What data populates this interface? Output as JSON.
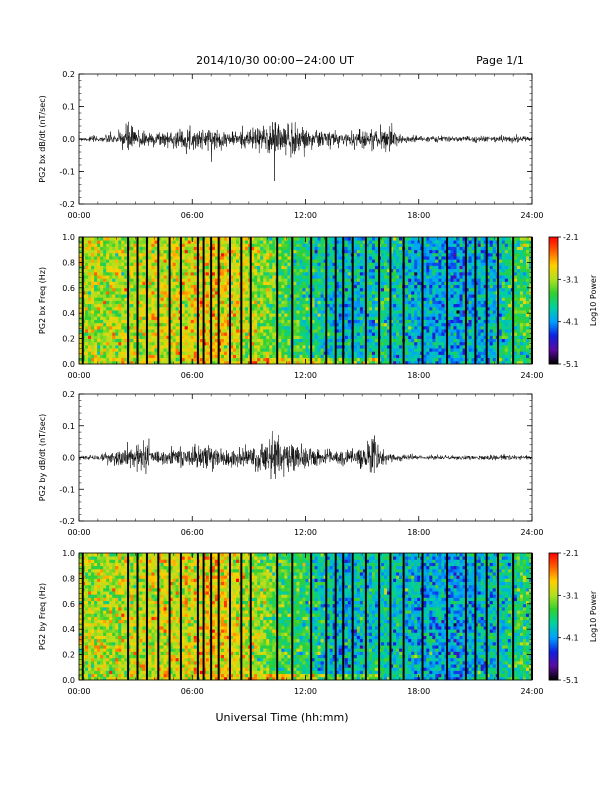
{
  "header": {
    "title": "2014/10/30  00:00−24:00 UT",
    "page": "Page 1/1"
  },
  "footer": {
    "xlabel": "Universal Time (hh:mm)"
  },
  "colors": {
    "axis": "#000000",
    "trace": "#000000",
    "colormap": [
      "#000000",
      "#5a0aa0",
      "#1020e0",
      "#00a0ff",
      "#00d0a0",
      "#30d030",
      "#b0e020",
      "#ffd000",
      "#ff6000",
      "#ff0000"
    ]
  },
  "chart_data": [
    {
      "type": "line",
      "ylabel": "PG2 bx dB/dt (nT/sec)",
      "xlim": [
        0,
        24
      ],
      "ylim": [
        -0.2,
        0.2
      ],
      "xticks": [
        "00:00",
        "06:00",
        "12:00",
        "18:00",
        "24:00"
      ],
      "yticks": [
        "0.2",
        "0.1",
        "0.0",
        "-0.1",
        "-0.2"
      ],
      "envelope": {
        "hours": [
          0,
          1,
          2,
          2.5,
          3,
          4,
          5,
          6,
          7,
          8,
          9,
          10,
          10.5,
          11,
          12,
          13,
          14,
          15,
          16,
          16.5,
          17,
          18,
          19,
          20,
          21,
          22,
          23,
          24
        ],
        "amplitude": [
          0.006,
          0.008,
          0.015,
          0.045,
          0.03,
          0.02,
          0.022,
          0.025,
          0.03,
          0.02,
          0.025,
          0.04,
          0.065,
          0.05,
          0.03,
          0.025,
          0.02,
          0.025,
          0.03,
          0.035,
          0.01,
          0.008,
          0.008,
          0.007,
          0.008,
          0.008,
          0.01,
          0.006
        ]
      }
    },
    {
      "type": "heatmap",
      "ylabel": "PG2 bx Freq (Hz)",
      "colorbar_label": "Log10 Power",
      "colorbar_ticks": [
        "-2.1",
        "-3.1",
        "-4.1",
        "-5.1"
      ],
      "clim": [
        -5.1,
        -2.1
      ],
      "xlim": [
        0,
        24
      ],
      "ylim": [
        0,
        1
      ],
      "xticks": [
        "00:00",
        "06:00",
        "12:00",
        "18:00",
        "24:00"
      ],
      "yticks": [
        "1.0",
        "0.8",
        "0.6",
        "0.4",
        "0.2",
        "0.0"
      ],
      "mean_log_power": {
        "hours": [
          0,
          2,
          4,
          6,
          7,
          8,
          9,
          10,
          11,
          12,
          13,
          14,
          15,
          16,
          17,
          18,
          19,
          20,
          21,
          22,
          23,
          24
        ],
        "value": [
          -3.1,
          -3.1,
          -3.0,
          -2.9,
          -2.8,
          -2.9,
          -3.1,
          -3.3,
          -3.5,
          -3.6,
          -3.8,
          -4.0,
          -3.9,
          -3.7,
          -3.8,
          -4.0,
          -4.0,
          -4.1,
          -4.0,
          -3.9,
          -3.6,
          -3.4
        ]
      },
      "gap_hours": [
        0.2,
        2.6,
        3.1,
        3.6,
        4.2,
        4.8,
        5.4,
        6.3,
        6.6,
        7.0,
        7.4,
        8.0,
        8.6,
        9.1,
        10.5,
        11.3,
        12.3,
        13.1,
        13.6,
        14.0,
        14.5,
        15.2,
        15.9,
        16.5,
        17.2,
        18.2,
        19.5,
        20.5,
        21.0,
        21.6,
        22.2,
        23.0,
        24.0
      ]
    },
    {
      "type": "line",
      "ylabel": "PG2 by dB/dt (nT/sec)",
      "xlim": [
        0,
        24
      ],
      "ylim": [
        -0.2,
        0.2
      ],
      "xticks": [
        "00:00",
        "06:00",
        "12:00",
        "18:00",
        "24:00"
      ],
      "yticks": [
        "0.2",
        "0.1",
        "0.0",
        "-0.1",
        "-0.2"
      ],
      "envelope": {
        "hours": [
          0,
          1,
          2,
          3,
          3.5,
          4,
          5,
          6,
          7,
          8,
          9,
          10,
          10.5,
          11,
          12,
          13,
          14,
          15,
          15.6,
          16,
          17,
          18,
          19,
          20,
          21,
          22,
          23,
          24
        ],
        "amplitude": [
          0.005,
          0.008,
          0.02,
          0.035,
          0.045,
          0.02,
          0.025,
          0.03,
          0.035,
          0.025,
          0.03,
          0.045,
          0.07,
          0.05,
          0.03,
          0.02,
          0.02,
          0.025,
          0.05,
          0.02,
          0.008,
          0.006,
          0.006,
          0.006,
          0.007,
          0.007,
          0.008,
          0.005
        ]
      }
    },
    {
      "type": "heatmap",
      "ylabel": "PG2 by Freq (Hz)",
      "colorbar_label": "Log10 Power",
      "colorbar_ticks": [
        "-2.1",
        "-3.1",
        "-4.1",
        "-5.1"
      ],
      "clim": [
        -5.1,
        -2.1
      ],
      "xlim": [
        0,
        24
      ],
      "ylim": [
        0,
        1
      ],
      "xticks": [
        "00:00",
        "06:00",
        "12:00",
        "18:00",
        "24:00"
      ],
      "yticks": [
        "1.0",
        "0.8",
        "0.6",
        "0.4",
        "0.2",
        "0.0"
      ],
      "mean_log_power": {
        "hours": [
          0,
          2,
          4,
          6,
          7,
          8,
          9,
          10,
          11,
          12,
          13,
          14,
          15,
          16,
          17,
          18,
          19,
          20,
          21,
          22,
          23,
          24
        ],
        "value": [
          -3.1,
          -3.1,
          -3.0,
          -2.9,
          -2.8,
          -2.9,
          -3.1,
          -3.3,
          -3.5,
          -3.6,
          -3.8,
          -4.0,
          -3.9,
          -3.8,
          -3.8,
          -4.0,
          -4.0,
          -4.1,
          -4.0,
          -3.9,
          -3.7,
          -3.5
        ]
      },
      "gap_hours": [
        0.2,
        2.6,
        3.1,
        3.6,
        4.2,
        4.8,
        5.4,
        6.3,
        6.6,
        7.0,
        7.4,
        8.0,
        8.6,
        9.1,
        10.5,
        11.3,
        12.3,
        13.1,
        13.6,
        14.0,
        14.5,
        15.2,
        15.9,
        16.5,
        17.2,
        18.2,
        19.5,
        20.5,
        21.0,
        21.6,
        22.2,
        23.0,
        24.0
      ]
    }
  ]
}
